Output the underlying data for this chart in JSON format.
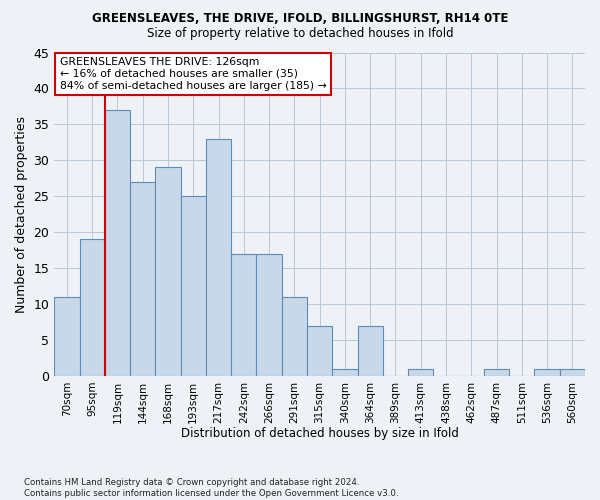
{
  "title1": "GREENSLEAVES, THE DRIVE, IFOLD, BILLINGSHURST, RH14 0TE",
  "title2": "Size of property relative to detached houses in Ifold",
  "xlabel": "Distribution of detached houses by size in Ifold",
  "ylabel": "Number of detached properties",
  "bar_labels": [
    "70sqm",
    "95sqm",
    "119sqm",
    "144sqm",
    "168sqm",
    "193sqm",
    "217sqm",
    "242sqm",
    "266sqm",
    "291sqm",
    "315sqm",
    "340sqm",
    "364sqm",
    "389sqm",
    "413sqm",
    "438sqm",
    "462sqm",
    "487sqm",
    "511sqm",
    "536sqm",
    "560sqm"
  ],
  "bar_values": [
    11,
    19,
    37,
    27,
    29,
    25,
    33,
    17,
    17,
    11,
    7,
    1,
    7,
    0,
    1,
    0,
    0,
    1,
    0,
    1,
    1
  ],
  "bar_color": "#c8d8e8",
  "bar_edge_color": "#5b8db8",
  "vline_x_idx": 2,
  "vline_color": "#cc0000",
  "annotation_text": "GREENSLEAVES THE DRIVE: 126sqm\n← 16% of detached houses are smaller (35)\n84% of semi-detached houses are larger (185) →",
  "annotation_box_color": "#ffffff",
  "annotation_box_edge": "#cc0000",
  "ylim": [
    0,
    45
  ],
  "yticks": [
    0,
    5,
    10,
    15,
    20,
    25,
    30,
    35,
    40,
    45
  ],
  "footnote": "Contains HM Land Registry data © Crown copyright and database right 2024.\nContains public sector information licensed under the Open Government Licence v3.0.",
  "bg_color": "#eef2f7",
  "plot_bg_color": "#eef2f7"
}
